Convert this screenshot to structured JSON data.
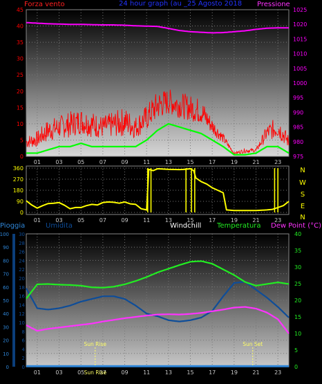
{
  "colors": {
    "wind_label": "#ff2020",
    "pressure_label": "#ff33ff",
    "title": "#2233ff",
    "wind": "#ff0000",
    "wind_avg": "#00ff00",
    "pressure": "#ff00ff",
    "direction": "#ffff00",
    "rain": "#2f86d8",
    "humidity": "#0e4d99",
    "windchill": "#ffffff",
    "temperature": "#22ee22",
    "dewpoint": "#ff33ff",
    "axis_tick": "#c8c8c8",
    "grid": "#777777",
    "sun_marker": "#ffff66"
  },
  "chart_data": [
    {
      "type": "line",
      "title": "24 hour graph (au _25 Agosto 2018",
      "left_axis_label": "Forza vento",
      "right_axis_label": "Pressione",
      "x_ticks": [
        "01",
        "03",
        "05",
        "07",
        "09",
        "11",
        "13",
        "15",
        "17",
        "19",
        "21",
        "23"
      ],
      "left_ylim": [
        0,
        45
      ],
      "left_yticks": [
        "0",
        "5",
        "10",
        "15",
        "20",
        "25",
        "30",
        "35",
        "40",
        "45"
      ],
      "right_ylim": [
        975,
        1025
      ],
      "right_yticks": [
        "975",
        "980",
        "985",
        "990",
        "995",
        "1000",
        "1005",
        "1010",
        "1015",
        "1020",
        "1025"
      ],
      "grid": true,
      "x_hours": [
        0,
        1,
        2,
        3,
        4,
        5,
        6,
        7,
        8,
        9,
        10,
        11,
        12,
        13,
        14,
        15,
        16,
        17,
        18,
        19,
        20,
        21,
        22,
        23,
        24
      ],
      "series": [
        {
          "key": "gust",
          "values": [
            5,
            6,
            9,
            10,
            11,
            12,
            11,
            10,
            11,
            12,
            10,
            13,
            17,
            18,
            17,
            16,
            15,
            10,
            6,
            1,
            2,
            2,
            8,
            10,
            5
          ]
        },
        {
          "key": "average",
          "values": [
            1,
            1,
            2,
            3,
            3,
            4,
            3,
            3,
            3,
            3,
            3,
            5,
            8,
            10,
            9,
            8,
            7,
            5,
            3,
            0.5,
            0.5,
            1,
            3,
            3,
            1
          ]
        },
        {
          "key": "pressure",
          "values": [
            1020.6,
            1020.4,
            1020.2,
            1020.1,
            1020,
            1020,
            1019.9,
            1019.8,
            1019.8,
            1019.7,
            1019.5,
            1019.4,
            1019.3,
            1018.6,
            1017.9,
            1017.5,
            1017.3,
            1017.1,
            1017.2,
            1017.5,
            1017.8,
            1018.3,
            1018.7,
            1018.8,
            1018.8
          ]
        }
      ]
    },
    {
      "type": "line",
      "ylim": [
        0,
        360
      ],
      "left_yticks": [
        "0",
        "90",
        "180",
        "270",
        "360"
      ],
      "right_labels": [
        "N",
        "W",
        "S",
        "E",
        "N"
      ],
      "grid": true,
      "series": [
        {
          "key": "direction",
          "hours": [
            0,
            0.5,
            1,
            1.5,
            2,
            2.5,
            3,
            3.5,
            4,
            4.5,
            5,
            5.5,
            6,
            6.5,
            7,
            7.5,
            8,
            8.5,
            9,
            9.5,
            10,
            10.5,
            11,
            11.2,
            11.6,
            12,
            13,
            14,
            14.5,
            15,
            15.3,
            15.5,
            16,
            16.5,
            17,
            18,
            18.3,
            19,
            20,
            21,
            22,
            22.5,
            23,
            23.5,
            24
          ],
          "values": [
            95,
            60,
            35,
            55,
            72,
            75,
            80,
            58,
            30,
            40,
            40,
            55,
            65,
            60,
            80,
            85,
            82,
            75,
            85,
            70,
            65,
            30,
            20,
            350,
            340,
            355,
            350,
            348,
            350,
            355,
            340,
            280,
            250,
            230,
            200,
            160,
            20,
            15,
            15,
            15,
            20,
            25,
            40,
            55,
            90
          ]
        }
      ]
    },
    {
      "type": "line",
      "legend": [
        "Pioggia",
        "Umidita",
        "Windchill",
        "Temperatura",
        "Dew Point (°C)"
      ],
      "rain_yticks": [
        "0",
        "10",
        "20",
        "30",
        "40",
        "50",
        "60",
        "70",
        "80",
        "90",
        "100"
      ],
      "humidity_yticks": [
        "0",
        "2",
        "4",
        "6",
        "8",
        "10",
        "12",
        "14",
        "16",
        "18",
        "20",
        "22",
        "24",
        "26",
        "28",
        "30"
      ],
      "temp_yticks": [
        "0",
        "5",
        "10",
        "15",
        "20",
        "25",
        "30",
        "35",
        "40"
      ],
      "temp_ylim": [
        0,
        40
      ],
      "humidity_ylim": [
        0,
        100
      ],
      "rain_ylim": [
        0,
        100
      ],
      "grid": true,
      "annotations": [
        {
          "label": "Sun Rise",
          "hour": 6.3
        },
        {
          "label": "Sun Set",
          "hour": 20.7
        }
      ],
      "axis_overlap_label": "Sun Rise",
      "x_hours": [
        0,
        1,
        2,
        3,
        4,
        5,
        6,
        7,
        8,
        9,
        10,
        11,
        12,
        13,
        14,
        15,
        16,
        17,
        18,
        19,
        20,
        21,
        22,
        23,
        24
      ],
      "series": [
        {
          "key": "temperature",
          "values": [
            20.5,
            24.8,
            24.9,
            24.7,
            24.6,
            24.4,
            23.9,
            23.8,
            24.1,
            24.8,
            25.8,
            27,
            28.4,
            29.5,
            30.6,
            31.6,
            31.8,
            31,
            29.3,
            27.6,
            25.5,
            24.4,
            24.9,
            25.4,
            24.9
          ]
        },
        {
          "key": "humidity",
          "values": [
            59,
            44,
            43,
            44,
            46,
            49,
            51,
            53,
            53,
            51,
            46,
            40,
            38,
            35,
            34,
            35,
            37,
            42,
            53,
            63,
            64,
            58,
            52,
            45,
            37
          ]
        },
        {
          "key": "dewpoint",
          "values": [
            12.5,
            10.8,
            11.4,
            11.8,
            12.2,
            12.6,
            13,
            13.6,
            14.1,
            14.6,
            15,
            15.4,
            15.7,
            15.8,
            15.7,
            15.9,
            16.2,
            16.7,
            17.2,
            17.8,
            18,
            17.5,
            16.3,
            14.3,
            10
          ]
        },
        {
          "key": "rain",
          "values": [
            0.4,
            0.4,
            0.4,
            0.4,
            0.4,
            0.4,
            0.4,
            0.4,
            0.4,
            0.4,
            0.4,
            0.4,
            0.4,
            0.4,
            0.4,
            0.4,
            0.4,
            0.4,
            0.4,
            0.4,
            0.4,
            0.4,
            0.4,
            0.4,
            0.4
          ]
        }
      ]
    }
  ]
}
